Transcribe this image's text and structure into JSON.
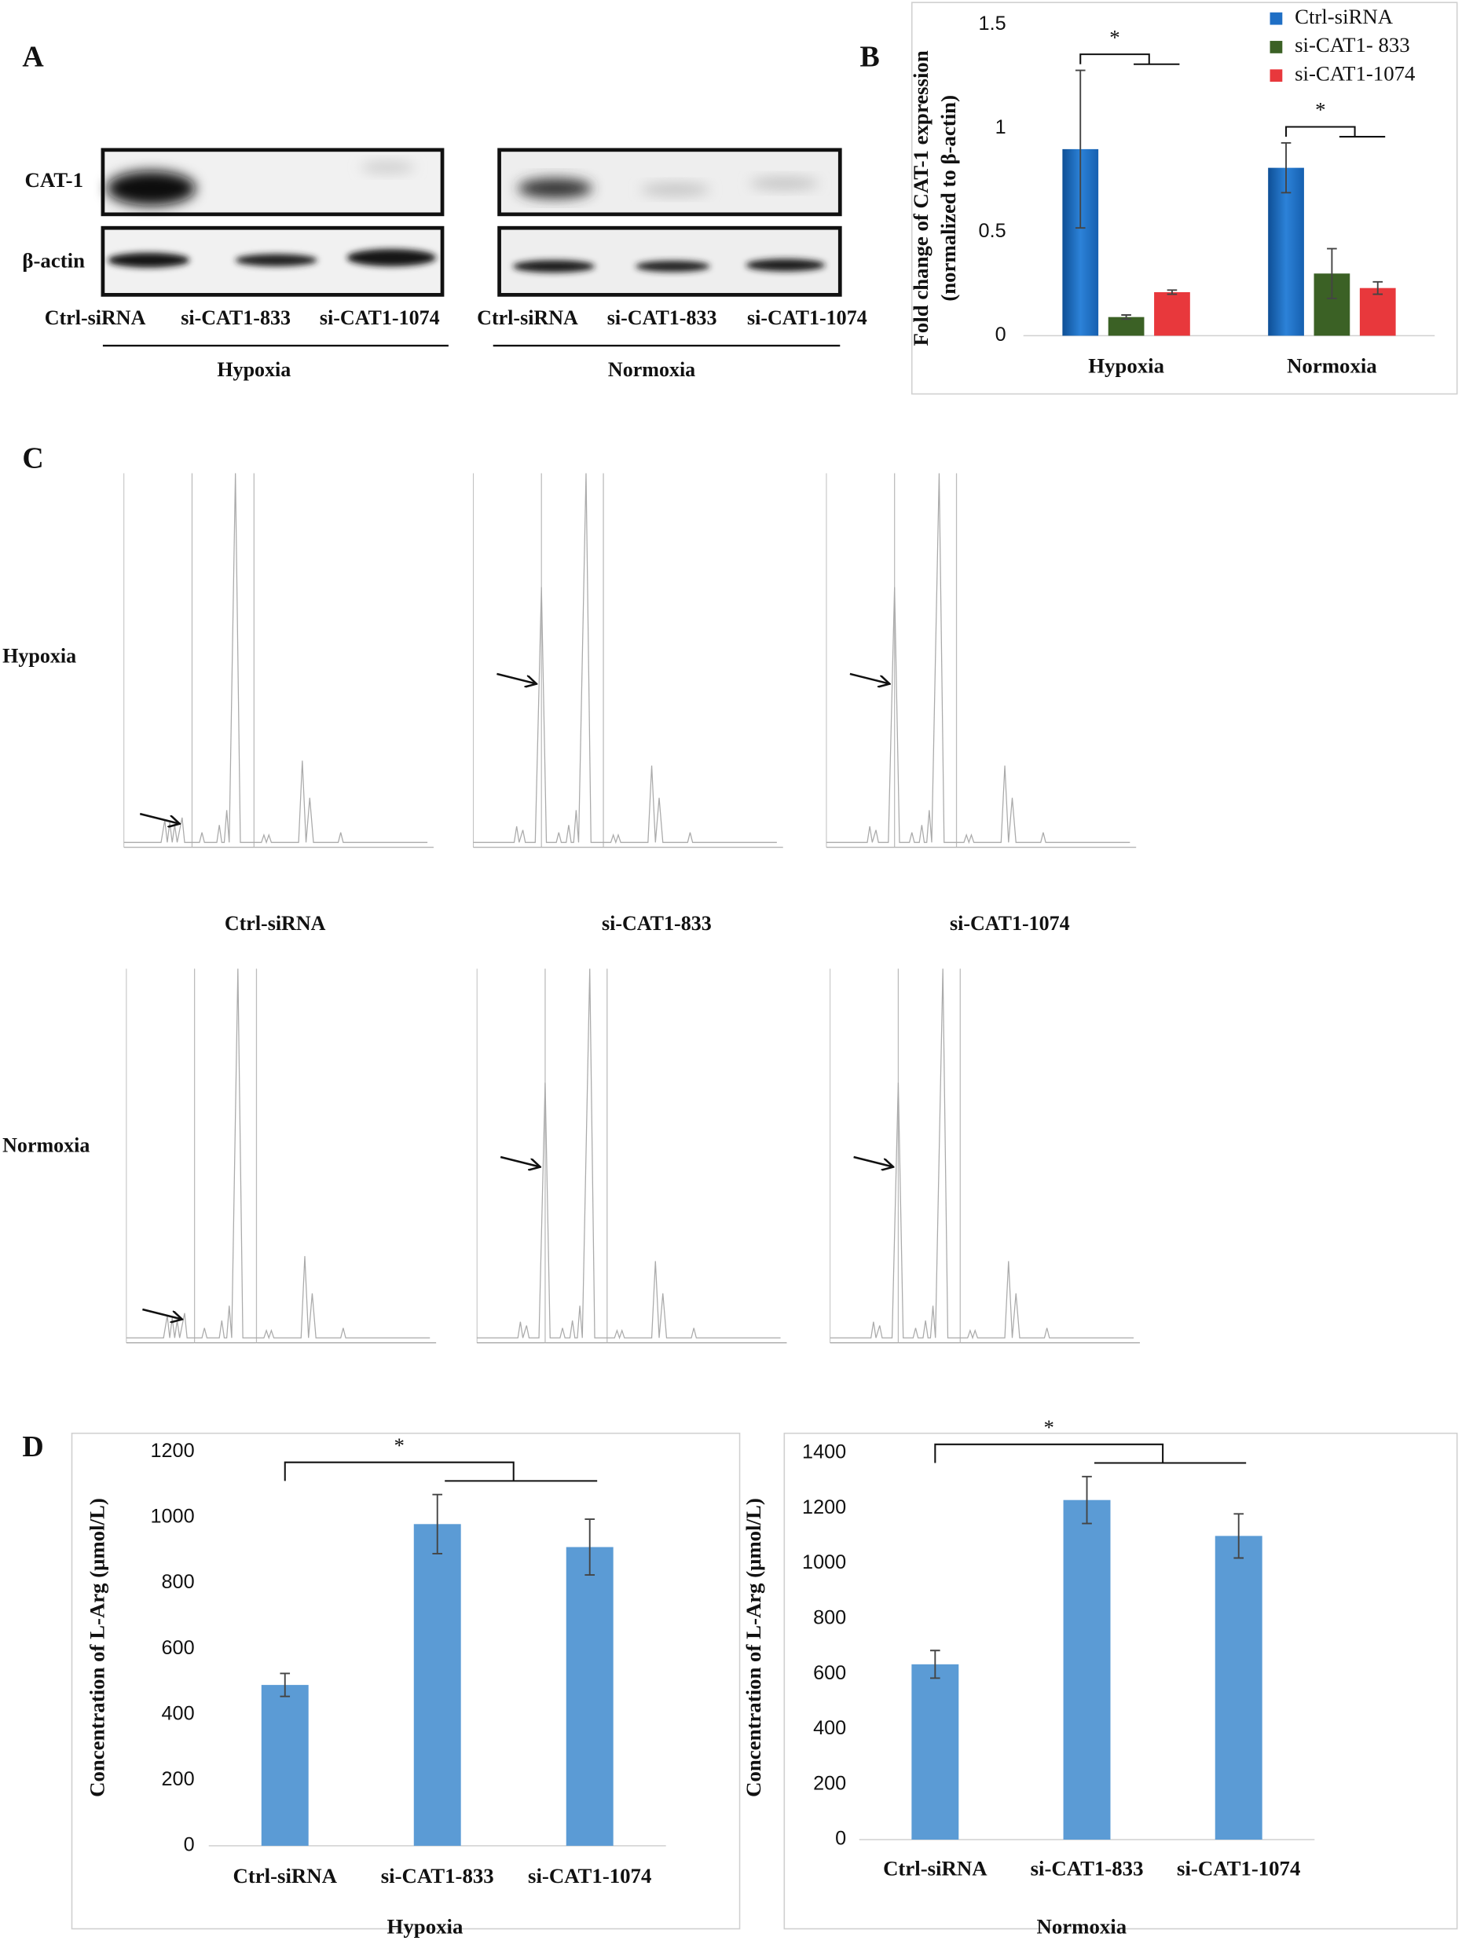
{
  "panel_labels": [
    "A",
    "B",
    "C",
    "D"
  ],
  "blot": {
    "rows": [
      "CAT-1",
      "β-actin"
    ],
    "groups": [
      {
        "name": "Hypoxia",
        "lanes": [
          "Ctrl-siRNA",
          "si-CAT1-833",
          "si-CAT1-1074"
        ]
      },
      {
        "name": "Normoxia",
        "lanes": [
          "Ctrl-siRNA",
          "si-CAT1-833",
          "si-CAT1-1074"
        ]
      }
    ]
  },
  "chromatograms": {
    "rows": [
      "Hypoxia",
      "Normoxia"
    ],
    "columns": [
      "Ctrl-siRNA",
      "si-CAT1-833",
      "si-CAT1-1074"
    ]
  },
  "chart_data": [
    {
      "type": "bar",
      "ylabel": [
        "Fold change of CAT-1 expression",
        "(normalized to β-actin)"
      ],
      "categories": [
        "Hypoxia",
        "Normoxia"
      ],
      "series": [
        {
          "name": "Ctrl-siRNA",
          "color": "#1f6fc5",
          "values": [
            0.9,
            0.81
          ],
          "errors": [
            0.38,
            0.12
          ]
        },
        {
          "name": "si-CAT1- 833",
          "color": "#3b6125",
          "values": [
            0.09,
            0.3
          ],
          "errors": [
            0.01,
            0.12
          ]
        },
        {
          "name": "si-CAT1-1074",
          "color": "#e8383c",
          "values": [
            0.21,
            0.23
          ],
          "errors": [
            0.01,
            0.03
          ]
        }
      ],
      "annotations": [
        "*",
        "*"
      ],
      "ylim": [
        0,
        1.5
      ],
      "yticks": [
        0,
        0.5,
        1,
        1.5
      ],
      "legend": "top-right"
    },
    {
      "type": "bar",
      "ylabel": [
        "Concentration of L-Arg (μmol/L)"
      ],
      "xlabel": "Hypoxia",
      "categories": [
        "Ctrl-siRNA",
        "si-CAT1-833",
        "si-CAT1-1074"
      ],
      "values": [
        490,
        980,
        910
      ],
      "errors": [
        35,
        90,
        85
      ],
      "color": "#5b9bd5",
      "annotations": [
        "*"
      ],
      "ylim": [
        0,
        1200
      ],
      "yticks": [
        0,
        200,
        400,
        600,
        800,
        1000,
        1200
      ]
    },
    {
      "type": "bar",
      "ylabel": [
        "Concentration of L-Arg (μmol/L)"
      ],
      "xlabel": "Normoxia",
      "categories": [
        "Ctrl-siRNA",
        "si-CAT1-833",
        "si-CAT1-1074"
      ],
      "values": [
        635,
        1230,
        1100
      ],
      "errors": [
        50,
        85,
        80
      ],
      "color": "#5b9bd5",
      "annotations": [
        "*"
      ],
      "ylim": [
        0,
        1400
      ],
      "yticks": [
        0,
        200,
        400,
        600,
        800,
        1000,
        1200,
        1400
      ]
    }
  ]
}
